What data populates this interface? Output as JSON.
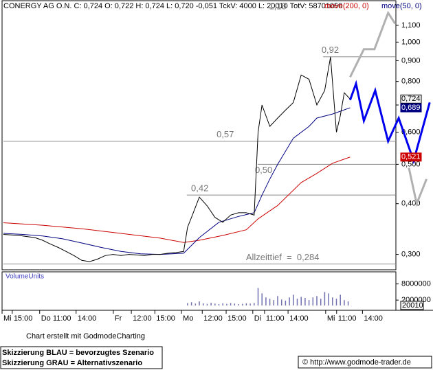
{
  "chart_data": {
    "type": "line",
    "title": "CONERGY AG O.N. C: 0,724 O: 0,722 H: 0,724 L: 0,720 -0,051 TckV: 4000 L: 20010 TotV: 58701050",
    "log_scale": true,
    "xlim": [
      0,
      100
    ],
    "xticks": [
      {
        "value": 0,
        "label": "Mi"
      },
      {
        "value": 2.6,
        "label": "15:00"
      },
      {
        "value": 9.6,
        "label": "Do 11:00"
      },
      {
        "value": 18.9,
        "label": "14:00"
      },
      {
        "value": 28.4,
        "label": "Fr"
      },
      {
        "value": 33,
        "label": "12:00"
      },
      {
        "value": 39,
        "label": "15:00"
      },
      {
        "value": 45.8,
        "label": "Mo"
      },
      {
        "value": 51.1,
        "label": "12:00"
      },
      {
        "value": 57.2,
        "label": "15:00"
      },
      {
        "value": 64,
        "label": "Di"
      },
      {
        "value": 67,
        "label": "11:00"
      },
      {
        "value": 73,
        "label": "14:00"
      },
      {
        "value": 82.6,
        "label": "Mi"
      },
      {
        "value": 85.4,
        "label": "11:00"
      },
      {
        "value": 92,
        "label": "14:00"
      }
    ],
    "ylim": [
      0.276,
      1.26
    ],
    "yticks": [
      {
        "value": 1.1,
        "label": "1,100"
      },
      {
        "value": 1.0,
        "label": "1,000"
      },
      {
        "value": 0.9,
        "label": "0,900"
      },
      {
        "value": 0.8,
        "label": "0,800"
      },
      {
        "value": 0.7,
        "label": "0,700"
      },
      {
        "value": 0.6,
        "label": "0,600"
      },
      {
        "value": 0.5,
        "label": "0,500"
      },
      {
        "value": 0.4,
        "label": "0,400"
      },
      {
        "value": 0.3,
        "label": "0,300"
      }
    ],
    "series": [
      {
        "color": "#000000",
        "last_label": "0,724",
        "x": [
          0,
          2,
          4,
          6,
          8,
          10,
          12,
          14,
          16,
          18,
          20,
          22,
          24,
          26,
          28,
          30,
          32,
          34,
          36,
          38,
          40,
          42,
          44,
          46,
          47,
          48,
          50,
          52,
          54,
          56,
          58,
          60,
          62,
          64,
          65,
          66,
          68,
          70,
          72,
          74,
          76,
          78,
          80,
          82,
          83.5,
          85,
          86,
          87,
          88.5
        ],
        "values": [
          0.336,
          0.335,
          0.334,
          0.332,
          0.33,
          0.325,
          0.318,
          0.312,
          0.305,
          0.298,
          0.29,
          0.288,
          0.292,
          0.298,
          0.3,
          0.298,
          0.3,
          0.299,
          0.298,
          0.3,
          0.3,
          0.302,
          0.303,
          0.305,
          0.35,
          0.37,
          0.415,
          0.395,
          0.37,
          0.36,
          0.375,
          0.38,
          0.38,
          0.375,
          0.6,
          0.7,
          0.62,
          0.65,
          0.68,
          0.71,
          0.83,
          0.81,
          0.7,
          0.76,
          0.92,
          0.6,
          0.66,
          0.75,
          0.724
        ]
      },
      {
        "name": "move(200, 0)",
        "color": "#cc0000",
        "last_label": "0,521",
        "x": [
          0,
          10,
          20,
          30,
          40,
          46,
          50,
          56,
          62,
          65,
          70,
          76,
          80,
          84,
          88.5
        ],
        "values": [
          0.359,
          0.354,
          0.347,
          0.338,
          0.329,
          0.321,
          0.325,
          0.334,
          0.345,
          0.367,
          0.396,
          0.451,
          0.475,
          0.503,
          0.521
        ]
      },
      {
        "name": "move(50, 0)",
        "color": "#000080",
        "last_label": "0,689",
        "x": [
          0,
          5,
          10,
          15,
          20,
          25,
          30,
          35,
          40,
          46,
          50,
          55,
          60,
          64,
          66,
          68,
          70,
          74,
          78,
          80,
          84,
          88.5
        ],
        "values": [
          0.338,
          0.336,
          0.333,
          0.328,
          0.32,
          0.312,
          0.305,
          0.301,
          0.3,
          0.302,
          0.33,
          0.36,
          0.372,
          0.38,
          0.42,
          0.46,
          0.5,
          0.58,
          0.62,
          0.65,
          0.665,
          0.689
        ]
      }
    ],
    "levels": [
      {
        "value": 1.18,
        "label": "1,18",
        "line": false,
        "label_x": 67.8
      },
      {
        "value": 0.92,
        "label": "0,92",
        "x0": 81.6,
        "label_x": 81.2
      },
      {
        "value": 0.57,
        "label": "0,57",
        "x0": 0,
        "label_x": 54.4
      },
      {
        "value": 0.5,
        "label": "0,50",
        "x0": 64.9,
        "label_x": 64.2,
        "label_below": true
      },
      {
        "value": 0.42,
        "label": "0,42",
        "x0": 46.8,
        "label_x": 47.9
      },
      {
        "value": 0.284,
        "label": "Allzeittief  =  0,284",
        "x0": 0,
        "label_x": 61.9
      }
    ],
    "scenarios": [
      {
        "color": "#0000ee",
        "x": [
          88.5,
          90,
          92,
          94.9,
          98.2,
          100.9,
          104.7,
          108.8
        ],
        "values": [
          0.72,
          0.79,
          0.64,
          0.76,
          0.57,
          0.65,
          0.51,
          0.71
        ]
      },
      {
        "color": "#b0b0b0",
        "x": [
          88.5,
          92,
          94.7,
          98.2,
          100,
          null,
          103.5,
          105.5,
          108
        ],
        "values": [
          0.82,
          0.96,
          0.96,
          1.18,
          1.11,
          null,
          0.49,
          0.4,
          0.46
        ]
      }
    ],
    "volume": {
      "title": "VolumeUnits",
      "color": "#7070b0",
      "ylim": [
        0,
        12500000
      ],
      "yticks": [
        8000000,
        2000000
      ],
      "x": [
        47,
        48,
        49,
        50,
        51,
        52,
        53,
        54,
        55,
        56,
        57,
        58,
        59,
        60,
        61,
        62,
        63,
        64,
        65,
        66,
        67,
        68,
        69,
        70,
        71,
        72,
        73,
        74,
        75,
        76,
        77,
        78,
        79,
        80,
        81,
        82,
        83,
        84,
        85,
        86,
        87,
        88
      ],
      "values": [
        900000,
        1200000,
        700000,
        1500000,
        800000,
        600000,
        1000000,
        700000,
        500000,
        800000,
        600000,
        900000,
        700000,
        500000,
        600000,
        800000,
        700000,
        900000,
        6500000,
        4500000,
        3000000,
        2500000,
        2000000,
        3500000,
        2200000,
        1800000,
        3000000,
        4000000,
        2500000,
        3200000,
        2800000,
        2000000,
        3000000,
        3500000,
        2500000,
        5000000,
        4500000,
        3000000,
        2500000,
        4000000,
        2000000,
        1500000
      ],
      "last_value": 20010
    }
  },
  "footer": {
    "credit": "Chart erstellt mit GodmodeCharting",
    "note_blue": "Skizzierung BLAU = bevorzugtes Szenario",
    "note_gray": "Skizzierung GRAU = Alternativszenario",
    "copyright": "© http://www.godmode-trader.de"
  }
}
